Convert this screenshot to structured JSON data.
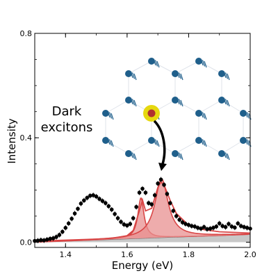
{
  "chart_data": {
    "type": "scatter",
    "title": "",
    "xlabel": "Energy (eV)",
    "ylabel": "Intensity",
    "xlim": [
      1.3,
      2.0
    ],
    "ylim": [
      -0.02,
      0.8
    ],
    "xticks": [
      1.4,
      1.6,
      1.8,
      2.0
    ],
    "xtick_labels": [
      "1.4",
      "1.6",
      "1.8",
      "2.0"
    ],
    "yticks": [
      0.0,
      0.4,
      0.8
    ],
    "ytick_labels": [
      "0.0",
      "0.4",
      "0.8"
    ],
    "grid": false,
    "annotation": {
      "line1": "Dark",
      "line2": "excitons"
    },
    "colors": {
      "data": "#000000",
      "fit": "#d94646",
      "fill": "#e89090",
      "background_fill": "#c8c8c8",
      "molecule": "#1f5f8b",
      "highlight": "#e6d80f",
      "highlight_center": "#b03030"
    },
    "series": [
      {
        "x": [
          1.3,
          1.31,
          1.32,
          1.33,
          1.34,
          1.35,
          1.36,
          1.37,
          1.38,
          1.39,
          1.4,
          1.41,
          1.42,
          1.43,
          1.44,
          1.45,
          1.46,
          1.47,
          1.48,
          1.49,
          1.5,
          1.51,
          1.52,
          1.53,
          1.54,
          1.55,
          1.56,
          1.57,
          1.58,
          1.59,
          1.6,
          1.61,
          1.62,
          1.63,
          1.64,
          1.65,
          1.66,
          1.67,
          1.68,
          1.69,
          1.7,
          1.71,
          1.72,
          1.73,
          1.74,
          1.75,
          1.76,
          1.77,
          1.78,
          1.79,
          1.8,
          1.81,
          1.82,
          1.83,
          1.84,
          1.85,
          1.86,
          1.87,
          1.88,
          1.89,
          1.9,
          1.91,
          1.92,
          1.93,
          1.94,
          1.95,
          1.96,
          1.97,
          1.98,
          1.99,
          2.0
        ],
        "y": [
          0.005,
          0.006,
          0.008,
          0.007,
          0.01,
          0.013,
          0.015,
          0.02,
          0.028,
          0.04,
          0.055,
          0.072,
          0.09,
          0.11,
          0.128,
          0.148,
          0.16,
          0.17,
          0.178,
          0.18,
          0.175,
          0.166,
          0.158,
          0.15,
          0.138,
          0.125,
          0.108,
          0.092,
          0.078,
          0.068,
          0.064,
          0.07,
          0.092,
          0.135,
          0.19,
          0.205,
          0.19,
          0.15,
          0.145,
          0.18,
          0.225,
          0.24,
          0.22,
          0.185,
          0.15,
          0.12,
          0.1,
          0.086,
          0.076,
          0.07,
          0.066,
          0.062,
          0.06,
          0.055,
          0.052,
          0.058,
          0.05,
          0.052,
          0.055,
          0.06,
          0.072,
          0.062,
          0.058,
          0.07,
          0.06,
          0.056,
          0.072,
          0.062,
          0.058,
          0.055,
          0.052
        ],
        "y_err": 0.01
      }
    ],
    "fit_components": [
      {
        "center": 1.645,
        "height": 0.155,
        "width": 0.012
      },
      {
        "center": 1.712,
        "height": 0.225,
        "width": 0.026
      }
    ],
    "background": {
      "x": [
        1.3,
        2.0
      ],
      "y": [
        0.0,
        0.03
      ]
    },
    "total_fit": {
      "x": [
        1.3,
        1.35,
        1.4,
        1.45,
        1.5,
        1.55,
        1.6,
        1.62,
        1.64,
        1.65,
        1.66,
        1.68,
        1.7,
        1.71,
        1.72,
        1.74,
        1.76,
        1.8,
        1.85,
        1.9,
        2.0
      ],
      "y": [
        0.002,
        0.006,
        0.008,
        0.01,
        0.012,
        0.015,
        0.025,
        0.045,
        0.12,
        0.162,
        0.12,
        0.13,
        0.21,
        0.23,
        0.22,
        0.16,
        0.11,
        0.065,
        0.048,
        0.04,
        0.035
      ]
    }
  }
}
